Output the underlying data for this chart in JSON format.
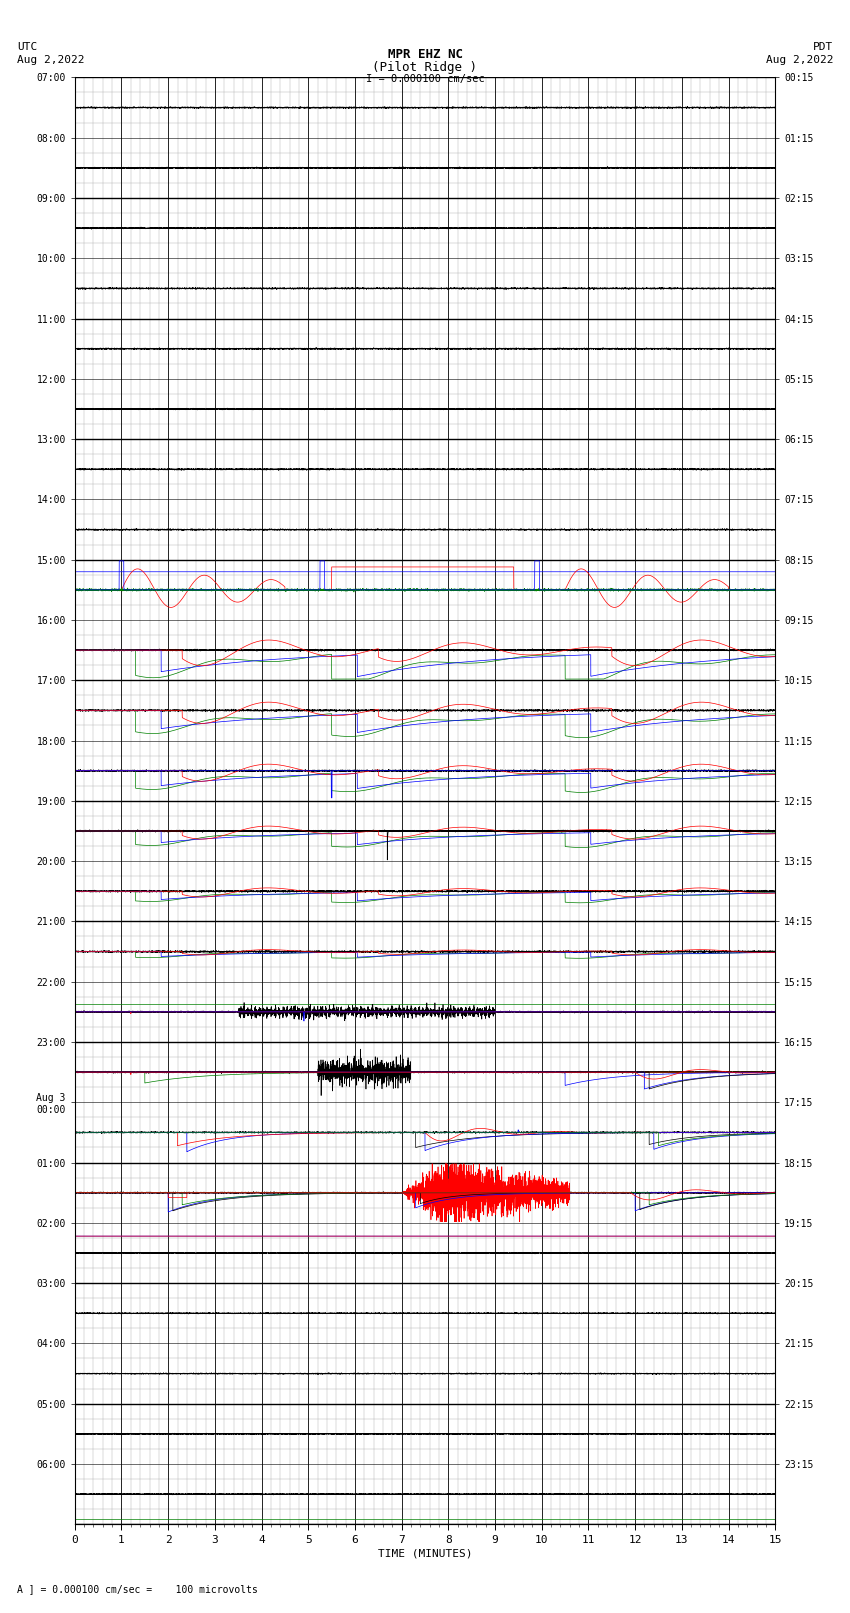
{
  "title_line1": "MPR EHZ NC",
  "title_line2": "(Pilot Ridge )",
  "scale_label": "I = 0.000100 cm/sec",
  "left_label": "UTC",
  "left_date": "Aug 2,2022",
  "right_label": "PDT",
  "right_date": "Aug 2,2022",
  "bottom_label": "TIME (MINUTES)",
  "footer_label": "A ] = 0.000100 cm/sec =    100 microvolts",
  "utc_times": [
    "07:00",
    "08:00",
    "09:00",
    "10:00",
    "11:00",
    "12:00",
    "13:00",
    "14:00",
    "15:00",
    "16:00",
    "17:00",
    "18:00",
    "19:00",
    "20:00",
    "21:00",
    "22:00",
    "23:00",
    "Aug 3\n00:00",
    "01:00",
    "02:00",
    "03:00",
    "04:00",
    "05:00",
    "06:00"
  ],
  "pdt_times": [
    "00:15",
    "01:15",
    "02:15",
    "03:15",
    "04:15",
    "05:15",
    "06:15",
    "07:15",
    "08:15",
    "09:15",
    "10:15",
    "11:15",
    "12:15",
    "13:15",
    "14:15",
    "15:15",
    "16:15",
    "17:15",
    "18:15",
    "19:15",
    "20:15",
    "21:15",
    "22:15",
    "23:15"
  ],
  "num_rows": 24,
  "x_min": 0,
  "x_max": 15,
  "background_color": "#ffffff",
  "grid_major_color": "#000000",
  "grid_minor_color": "#aaaaaa",
  "figwidth": 8.5,
  "figheight": 16.13
}
